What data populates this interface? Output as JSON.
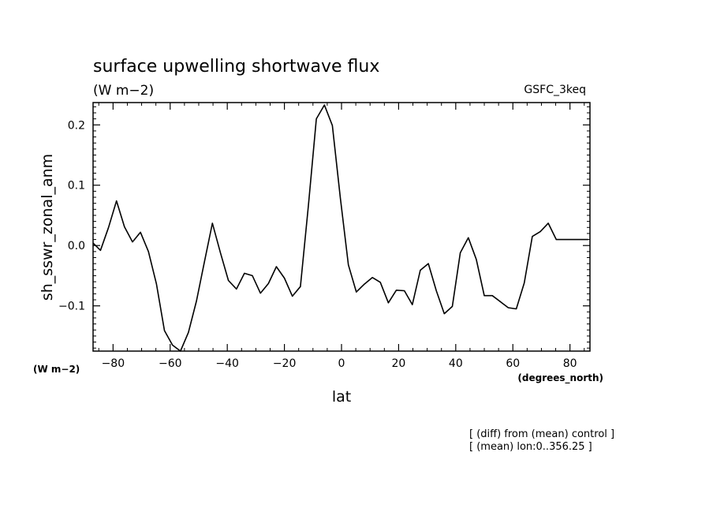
{
  "chart_data": {
    "type": "line",
    "title": "surface upwelling shortwave flux",
    "subtitle": "(W m−2)",
    "source_label": "GSFC_3keq",
    "ylabel": "sh_sswr_zonal_anm",
    "xlabel": "lat",
    "y_units_label": "(W m−2)",
    "x_units_label": "(degrees_north)",
    "notes": [
      "[ (diff) from (mean) control ]",
      "[ (mean) lon:0..356.25 ]"
    ],
    "xlim": [
      -87,
      87
    ],
    "ylim": [
      -0.175,
      0.237
    ],
    "x_ticks": [
      -80,
      -60,
      -40,
      -20,
      0,
      20,
      40,
      60,
      80
    ],
    "x_tick_labels": [
      "−80",
      "−60",
      "−40",
      "−20",
      "0",
      "20",
      "40",
      "60",
      "80"
    ],
    "y_ticks": [
      -0.1,
      0.0,
      0.1,
      0.2
    ],
    "y_tick_labels": [
      "−0.1",
      "0.0",
      "0.1",
      "0.2"
    ],
    "grid": false,
    "line_color": "#000000",
    "series": [
      {
        "x": [
          -87.2,
          -84.4,
          -81.6,
          -78.8,
          -76.0,
          -73.2,
          -70.4,
          -67.6,
          -64.8,
          -62.0,
          -59.2,
          -56.4,
          -53.6,
          -50.8,
          -48.0,
          -45.2,
          -42.4,
          -39.6,
          -36.8,
          -34.0,
          -31.2,
          -28.4,
          -25.6,
          -22.8,
          -20.0,
          -17.2,
          -14.4,
          -11.6,
          -8.8,
          -6.0,
          -3.2,
          -0.4,
          2.4,
          5.2,
          8.0,
          10.8,
          13.6,
          16.4,
          19.2,
          22.0,
          24.8,
          27.6,
          30.4,
          33.2,
          36.0,
          38.8,
          41.6,
          44.4,
          47.2,
          50.0,
          52.8,
          55.6,
          58.4,
          61.2,
          64.0,
          66.8,
          69.6,
          72.4,
          75.2,
          78.0,
          80.8,
          83.6,
          86.4
        ],
        "values": [
          0.004,
          -0.008,
          0.03,
          0.074,
          0.031,
          0.006,
          0.022,
          -0.01,
          -0.064,
          -0.141,
          -0.165,
          -0.178,
          -0.144,
          -0.092,
          -0.027,
          0.037,
          -0.012,
          -0.058,
          -0.072,
          -0.046,
          -0.05,
          -0.079,
          -0.063,
          -0.035,
          -0.054,
          -0.084,
          -0.068,
          0.066,
          0.21,
          0.233,
          0.199,
          0.078,
          -0.032,
          -0.077,
          -0.064,
          -0.053,
          -0.061,
          -0.095,
          -0.074,
          -0.075,
          -0.098,
          -0.041,
          -0.03,
          -0.075,
          -0.113,
          -0.101,
          -0.012,
          0.013,
          -0.023,
          -0.083,
          -0.083,
          -0.093,
          -0.103,
          -0.105,
          -0.062,
          0.015,
          0.023,
          0.037,
          0.01,
          0.01,
          0.01,
          0.01,
          0.01
        ]
      }
    ]
  }
}
